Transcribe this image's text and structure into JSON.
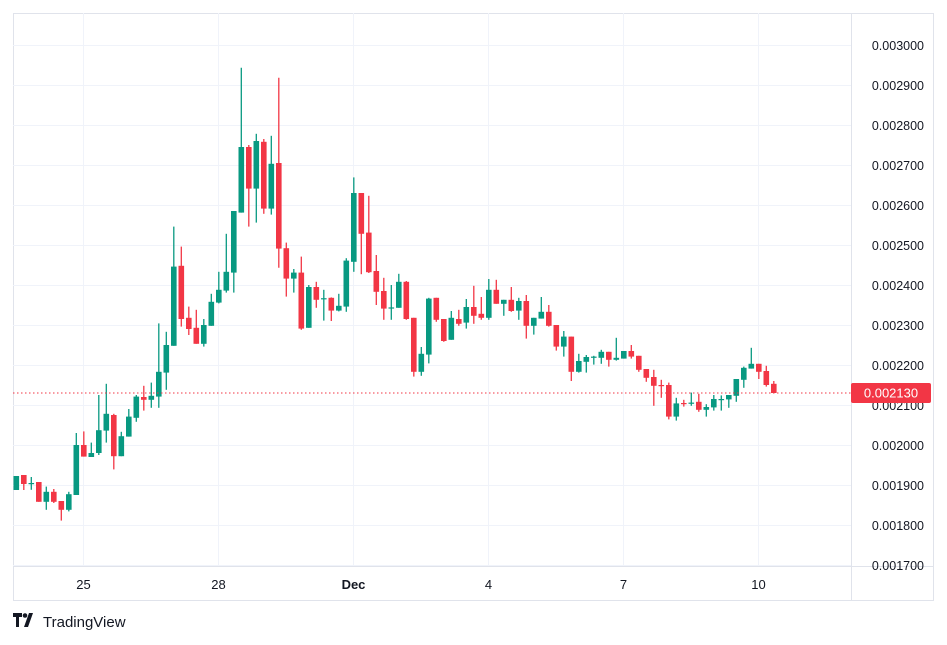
{
  "chart_data": {
    "type": "candlestick",
    "title": "",
    "xlabel": "",
    "ylabel": "",
    "ylim": [
      0.0017,
      0.00308
    ],
    "grid": true,
    "colors": {
      "up": "#089981",
      "down": "#F23645",
      "grid": "#f0f3fa",
      "last_price_line": "#F23645"
    },
    "y_ticks": [
      "0.003000",
      "0.002900",
      "0.002800",
      "0.002700",
      "0.002600",
      "0.002500",
      "0.002400",
      "0.002300",
      "0.002200",
      "0.002100",
      "0.002000",
      "0.001900",
      "0.001800",
      "0.001700"
    ],
    "x_ticks": [
      {
        "label": "25",
        "index": 9,
        "bold": false
      },
      {
        "label": "28",
        "index": 27,
        "bold": false
      },
      {
        "label": "Dec",
        "index": 45,
        "bold": true
      },
      {
        "label": "4",
        "index": 63,
        "bold": false
      },
      {
        "label": "7",
        "index": 81,
        "bold": false
      },
      {
        "label": "10",
        "index": 99,
        "bold": false
      }
    ],
    "last_price": "0.002130",
    "ohlc_fields": [
      "open",
      "high",
      "low",
      "close"
    ],
    "candles": [
      [
        0.0018875,
        0.0019225,
        0.0018875,
        0.0019225
      ],
      [
        0.001925,
        0.001925,
        0.0018875,
        0.0019025
      ],
      [
        0.001905,
        0.00192,
        0.001888,
        0.001905
      ],
      [
        0.0019075,
        0.0019075,
        0.001858,
        0.001858
      ],
      [
        0.001858,
        0.001896,
        0.001838,
        0.001883
      ],
      [
        0.001883,
        0.00189,
        0.001855,
        0.001858
      ],
      [
        0.00186,
        0.00186,
        0.001811,
        0.001838
      ],
      [
        0.001838,
        0.001883,
        0.001834,
        0.001877
      ],
      [
        0.001875,
        0.00203,
        0.001875,
        0.002
      ],
      [
        0.002,
        0.002034,
        0.001971,
        0.001971
      ],
      [
        0.00197,
        0.002006,
        0.00197,
        0.00198
      ],
      [
        0.00198,
        0.002125,
        0.001975,
        0.002037
      ],
      [
        0.002036,
        0.002153,
        0.002006,
        0.002078
      ],
      [
        0.002075,
        0.002078,
        0.001939,
        0.001972
      ],
      [
        0.001972,
        0.002033,
        0.001972,
        0.002022
      ],
      [
        0.002021,
        0.00209,
        0.002021,
        0.002071
      ],
      [
        0.002068,
        0.002125,
        0.002058,
        0.002121
      ],
      [
        0.00212,
        0.002148,
        0.002086,
        0.002113
      ],
      [
        0.002113,
        0.002156,
        0.002093,
        0.002123
      ],
      [
        0.002121,
        0.002304,
        0.002093,
        0.002183
      ],
      [
        0.002181,
        0.002283,
        0.002138,
        0.00225
      ],
      [
        0.002248,
        0.002546,
        0.002248,
        0.002446
      ],
      [
        0.002448,
        0.002496,
        0.002296,
        0.002315
      ],
      [
        0.002318,
        0.002346,
        0.002275,
        0.00229
      ],
      [
        0.002293,
        0.002338,
        0.002253,
        0.002253
      ],
      [
        0.002253,
        0.002315,
        0.002246,
        0.0023
      ],
      [
        0.002298,
        0.002378,
        0.002298,
        0.002358
      ],
      [
        0.002356,
        0.002433,
        0.002354,
        0.002388
      ],
      [
        0.002386,
        0.002528,
        0.002381,
        0.002433
      ],
      [
        0.002431,
        0.002585,
        0.002381,
        0.002585
      ],
      [
        0.002581,
        0.002943,
        0.002581,
        0.002745
      ],
      [
        0.002745,
        0.00275,
        0.002546,
        0.002641
      ],
      [
        0.002641,
        0.002778,
        0.002556,
        0.00276
      ],
      [
        0.002758,
        0.002765,
        0.002578,
        0.002591
      ],
      [
        0.002591,
        0.002773,
        0.002576,
        0.002703
      ],
      [
        0.002705,
        0.002918,
        0.002443,
        0.002491
      ],
      [
        0.002492,
        0.002506,
        0.002371,
        0.002416
      ],
      [
        0.002416,
        0.00244,
        0.002381,
        0.002431
      ],
      [
        0.002431,
        0.002471,
        0.002288,
        0.002291
      ],
      [
        0.002293,
        0.0024,
        0.002293,
        0.002395
      ],
      [
        0.002395,
        0.002408,
        0.002343,
        0.002363
      ],
      [
        0.002367,
        0.002388,
        0.002311,
        0.002367
      ],
      [
        0.002368,
        0.002369,
        0.00231,
        0.002336
      ],
      [
        0.002336,
        0.002378,
        0.002334,
        0.002348
      ],
      [
        0.002346,
        0.002467,
        0.002333,
        0.002461
      ],
      [
        0.002458,
        0.002669,
        0.002433,
        0.00263
      ],
      [
        0.00263,
        0.00263,
        0.002427,
        0.002528
      ],
      [
        0.002531,
        0.002623,
        0.00243,
        0.002432
      ],
      [
        0.002435,
        0.002475,
        0.00235,
        0.002383
      ],
      [
        0.002385,
        0.002418,
        0.002313,
        0.002341
      ],
      [
        0.002344,
        0.0024,
        0.002313,
        0.002344
      ],
      [
        0.002343,
        0.002428,
        0.002343,
        0.002408
      ],
      [
        0.002408,
        0.00241,
        0.002313,
        0.002315
      ],
      [
        0.002318,
        0.002318,
        0.002171,
        0.002183
      ],
      [
        0.002183,
        0.002245,
        0.002173,
        0.002228
      ],
      [
        0.002226,
        0.002368,
        0.002204,
        0.002366
      ],
      [
        0.002368,
        0.002368,
        0.002308,
        0.002313
      ],
      [
        0.002315,
        0.002315,
        0.002258,
        0.00226
      ],
      [
        0.002263,
        0.002335,
        0.002263,
        0.002318
      ],
      [
        0.002315,
        0.002338,
        0.002298,
        0.002303
      ],
      [
        0.002306,
        0.002365,
        0.002291,
        0.002345
      ],
      [
        0.002345,
        0.002398,
        0.002303,
        0.002323
      ],
      [
        0.002328,
        0.00237,
        0.002313,
        0.002318
      ],
      [
        0.002318,
        0.002415,
        0.002313,
        0.002388
      ],
      [
        0.002388,
        0.002413,
        0.002353,
        0.002353
      ],
      [
        0.002353,
        0.002363,
        0.002323,
        0.002363
      ],
      [
        0.002363,
        0.002395,
        0.002333,
        0.002335
      ],
      [
        0.002336,
        0.002368,
        0.002313,
        0.00236
      ],
      [
        0.00236,
        0.002375,
        0.002266,
        0.002298
      ],
      [
        0.002298,
        0.002318,
        0.002276,
        0.002318
      ],
      [
        0.002316,
        0.00237,
        0.002316,
        0.002333
      ],
      [
        0.002333,
        0.00235,
        0.002296,
        0.002298
      ],
      [
        0.0023,
        0.0023,
        0.002236,
        0.002246
      ],
      [
        0.002246,
        0.002285,
        0.002221,
        0.002271
      ],
      [
        0.002271,
        0.002271,
        0.00216,
        0.002183
      ],
      [
        0.002183,
        0.002228,
        0.002181,
        0.00221
      ],
      [
        0.002208,
        0.002225,
        0.002181,
        0.00222
      ],
      [
        0.00222,
        0.002223,
        0.002201,
        0.002221
      ],
      [
        0.002218,
        0.002238,
        0.002203,
        0.002233
      ],
      [
        0.002233,
        0.002233,
        0.002196,
        0.002213
      ],
      [
        0.002213,
        0.002268,
        0.002211,
        0.002218
      ],
      [
        0.002216,
        0.002235,
        0.002216,
        0.002235
      ],
      [
        0.002235,
        0.00225,
        0.002216,
        0.002221
      ],
      [
        0.002223,
        0.002223,
        0.002183,
        0.002188
      ],
      [
        0.00219,
        0.00219,
        0.002158,
        0.002168
      ],
      [
        0.00217,
        0.002188,
        0.002098,
        0.002148
      ],
      [
        0.00215,
        0.002163,
        0.002118,
        0.002149
      ],
      [
        0.00215,
        0.002156,
        0.002064,
        0.002071
      ],
      [
        0.002071,
        0.002118,
        0.002061,
        0.002104
      ],
      [
        0.002105,
        0.002113,
        0.002096,
        0.002104
      ],
      [
        0.002104,
        0.002131,
        0.002098,
        0.002106
      ],
      [
        0.002108,
        0.002128,
        0.002083,
        0.002088
      ],
      [
        0.002088,
        0.002102,
        0.002071,
        0.002095
      ],
      [
        0.002094,
        0.002125,
        0.002086,
        0.002115
      ],
      [
        0.002114,
        0.002124,
        0.002086,
        0.002115
      ],
      [
        0.002114,
        0.002125,
        0.002093,
        0.002125
      ],
      [
        0.002123,
        0.002165,
        0.002108,
        0.002165
      ],
      [
        0.002163,
        0.002196,
        0.002143,
        0.002193
      ],
      [
        0.002191,
        0.002243,
        0.002191,
        0.002203
      ],
      [
        0.002203,
        0.002203,
        0.002165,
        0.002183
      ],
      [
        0.002185,
        0.002198,
        0.002146,
        0.00215
      ],
      [
        0.002153,
        0.00216,
        0.00213,
        0.00213
      ]
    ]
  },
  "branding": {
    "logo_mark": "TV",
    "logo_text": "TradingView"
  }
}
